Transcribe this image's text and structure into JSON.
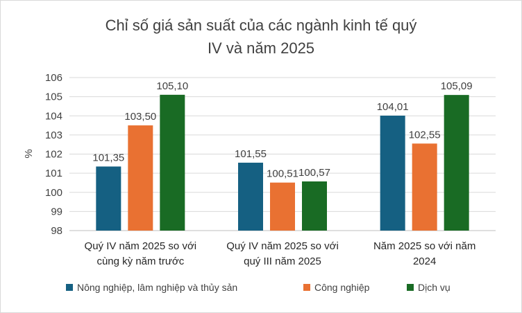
{
  "chart_data": {
    "type": "bar",
    "title_lines": [
      "Chỉ số giá sản suất của các ngành kinh tế quý",
      "IV và năm 2025"
    ],
    "ylabel": "%",
    "ylim": [
      98,
      106
    ],
    "yticks": [
      98,
      99,
      100,
      101,
      102,
      103,
      104,
      105,
      106
    ],
    "grid": true,
    "legend_position": "bottom",
    "categories": [
      [
        "Quý IV năm 2025 so với",
        "cùng kỳ năm trước"
      ],
      [
        "Quý IV năm 2025 so với",
        "quý III năm 2025"
      ],
      [
        "Năm 2025 so với năm",
        "2024"
      ]
    ],
    "series": [
      {
        "name": "Nông nghiệp, lâm nghiệp và thủy sản",
        "color": "#156082",
        "values": [
          101.35,
          101.55,
          104.01
        ],
        "labels": [
          "101,35",
          "101,55",
          "104,01"
        ]
      },
      {
        "name": "Công nghiệp",
        "color": "#E97132",
        "values": [
          103.5,
          100.51,
          102.55
        ],
        "labels": [
          "103,50",
          "100,51",
          "102,55"
        ]
      },
      {
        "name": "Dịch vụ",
        "color": "#196B24",
        "values": [
          105.1,
          100.57,
          105.09
        ],
        "labels": [
          "105,10",
          "100,57",
          "105,09"
        ]
      }
    ]
  }
}
